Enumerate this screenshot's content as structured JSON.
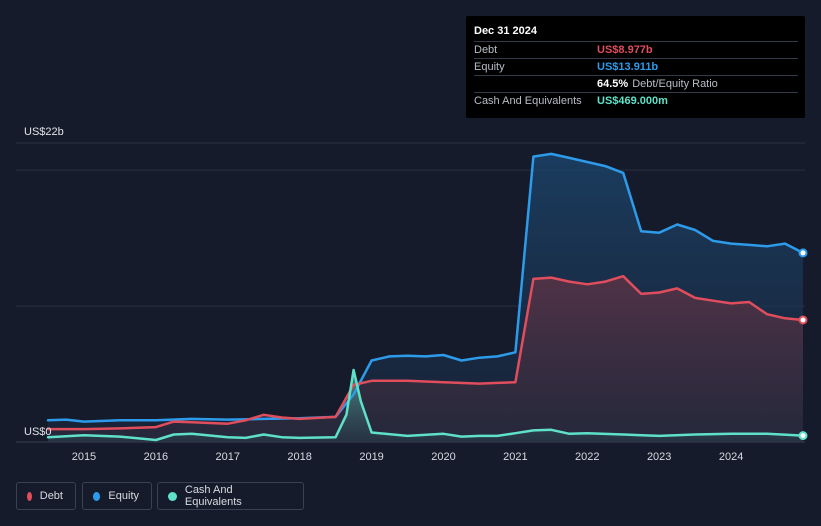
{
  "tooltip": {
    "date": "Dec 31 2024",
    "rows": [
      {
        "label": "Debt",
        "value": "US$8.977b",
        "color": "#e04d5c",
        "suffix": ""
      },
      {
        "label": "Equity",
        "value": "US$13.911b",
        "color": "#2d9bea",
        "suffix": ""
      },
      {
        "label": "",
        "value": "64.5%",
        "color": "#ffffff",
        "suffix": "Debt/Equity Ratio"
      },
      {
        "label": "Cash And Equivalents",
        "value": "US$469.000m",
        "color": "#5fe0c8",
        "suffix": ""
      }
    ]
  },
  "legend": {
    "debt": "Debt",
    "equity": "Equity",
    "cash": "Cash And Equivalents"
  },
  "chart_data": {
    "type": "area",
    "ylabel_top": "US$22b",
    "ylabel_bottom": "US$0",
    "ylim": [
      0,
      22
    ],
    "xlim": [
      2014.5,
      2025.0
    ],
    "x_ticks": [
      "2015",
      "2016",
      "2017",
      "2018",
      "2019",
      "2020",
      "2021",
      "2022",
      "2023",
      "2024"
    ],
    "gridlines": [
      0,
      10,
      20,
      22
    ],
    "series": [
      {
        "name": "Equity",
        "color": "#2d9bea",
        "points": [
          [
            2014.5,
            1.6
          ],
          [
            2014.75,
            1.65
          ],
          [
            2015.0,
            1.5
          ],
          [
            2015.5,
            1.6
          ],
          [
            2016.0,
            1.6
          ],
          [
            2016.5,
            1.7
          ],
          [
            2017.0,
            1.65
          ],
          [
            2017.5,
            1.7
          ],
          [
            2018.0,
            1.75
          ],
          [
            2018.25,
            1.8
          ],
          [
            2018.5,
            1.85
          ],
          [
            2018.75,
            3.5
          ],
          [
            2019.0,
            6.0
          ],
          [
            2019.25,
            6.3
          ],
          [
            2019.5,
            6.35
          ],
          [
            2019.75,
            6.3
          ],
          [
            2020.0,
            6.4
          ],
          [
            2020.25,
            6.0
          ],
          [
            2020.5,
            6.2
          ],
          [
            2020.75,
            6.3
          ],
          [
            2021.0,
            6.6
          ],
          [
            2021.25,
            21.0
          ],
          [
            2021.5,
            21.2
          ],
          [
            2021.75,
            20.9
          ],
          [
            2022.0,
            20.6
          ],
          [
            2022.25,
            20.3
          ],
          [
            2022.5,
            19.8
          ],
          [
            2022.75,
            15.5
          ],
          [
            2023.0,
            15.4
          ],
          [
            2023.25,
            16.0
          ],
          [
            2023.5,
            15.6
          ],
          [
            2023.75,
            14.8
          ],
          [
            2024.0,
            14.6
          ],
          [
            2024.25,
            14.5
          ],
          [
            2024.5,
            14.4
          ],
          [
            2024.75,
            14.6
          ],
          [
            2025.0,
            13.911
          ]
        ]
      },
      {
        "name": "Debt",
        "color": "#e04d5c",
        "points": [
          [
            2014.5,
            0.95
          ],
          [
            2015.0,
            0.95
          ],
          [
            2015.5,
            1.0
          ],
          [
            2016.0,
            1.1
          ],
          [
            2016.25,
            1.5
          ],
          [
            2016.5,
            1.45
          ],
          [
            2017.0,
            1.35
          ],
          [
            2017.25,
            1.6
          ],
          [
            2017.5,
            2.0
          ],
          [
            2017.75,
            1.8
          ],
          [
            2018.0,
            1.7
          ],
          [
            2018.5,
            1.85
          ],
          [
            2018.75,
            4.2
          ],
          [
            2019.0,
            4.5
          ],
          [
            2019.5,
            4.5
          ],
          [
            2020.0,
            4.4
          ],
          [
            2020.5,
            4.3
          ],
          [
            2020.75,
            4.35
          ],
          [
            2021.0,
            4.4
          ],
          [
            2021.25,
            12.0
          ],
          [
            2021.5,
            12.1
          ],
          [
            2021.75,
            11.8
          ],
          [
            2022.0,
            11.6
          ],
          [
            2022.25,
            11.8
          ],
          [
            2022.5,
            12.2
          ],
          [
            2022.75,
            10.9
          ],
          [
            2023.0,
            11.0
          ],
          [
            2023.25,
            11.3
          ],
          [
            2023.5,
            10.6
          ],
          [
            2023.75,
            10.4
          ],
          [
            2024.0,
            10.2
          ],
          [
            2024.25,
            10.3
          ],
          [
            2024.5,
            9.4
          ],
          [
            2024.75,
            9.1
          ],
          [
            2025.0,
            8.977
          ]
        ]
      },
      {
        "name": "Cash And Equivalents",
        "color": "#5fe0c8",
        "points": [
          [
            2014.5,
            0.35
          ],
          [
            2015.0,
            0.5
          ],
          [
            2015.5,
            0.4
          ],
          [
            2016.0,
            0.15
          ],
          [
            2016.25,
            0.55
          ],
          [
            2016.5,
            0.6
          ],
          [
            2017.0,
            0.35
          ],
          [
            2017.25,
            0.3
          ],
          [
            2017.5,
            0.55
          ],
          [
            2017.75,
            0.35
          ],
          [
            2018.0,
            0.3
          ],
          [
            2018.5,
            0.35
          ],
          [
            2018.65,
            2.0
          ],
          [
            2018.75,
            5.3
          ],
          [
            2018.85,
            3.0
          ],
          [
            2019.0,
            0.7
          ],
          [
            2019.5,
            0.45
          ],
          [
            2020.0,
            0.6
          ],
          [
            2020.25,
            0.4
          ],
          [
            2020.5,
            0.45
          ],
          [
            2020.75,
            0.45
          ],
          [
            2021.0,
            0.65
          ],
          [
            2021.25,
            0.85
          ],
          [
            2021.5,
            0.9
          ],
          [
            2021.75,
            0.6
          ],
          [
            2022.0,
            0.65
          ],
          [
            2022.5,
            0.55
          ],
          [
            2023.0,
            0.45
          ],
          [
            2023.5,
            0.55
          ],
          [
            2024.0,
            0.6
          ],
          [
            2024.5,
            0.6
          ],
          [
            2025.0,
            0.469
          ]
        ]
      }
    ]
  }
}
